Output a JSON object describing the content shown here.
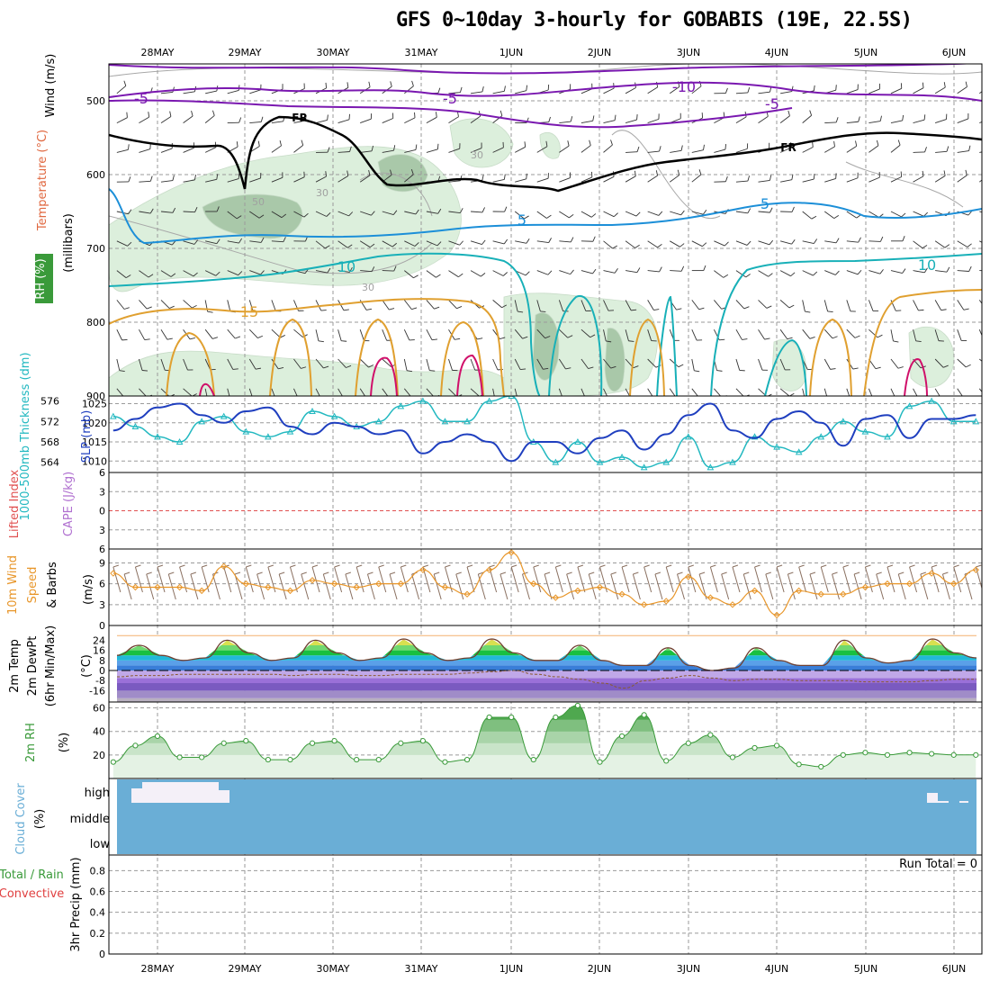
{
  "title": "GFS 0~10day 3-hourly for GOBABIS (19E, 22.5S)",
  "dates": [
    "28MAY",
    "29MAY",
    "30MAY",
    "31MAY",
    "1JUN",
    "2JUN",
    "3JUN",
    "4JUN",
    "5JUN",
    "6JUN"
  ],
  "colors": {
    "grid": "#9a9a9a",
    "frame": "#000000",
    "rh_fill": "#dcefdc",
    "rh_dark": "#a9c8a9",
    "slp": "#1f3fbf",
    "thickness": "#22b8c0",
    "wind10m": "#e8962a",
    "barbs": "#8a7060",
    "temp_purple": "#7a18b0",
    "temp_blue": "#1c8fd8",
    "temp_cyan": "#18b0b8",
    "temp_orange": "#e0a030",
    "temp_red": "#d0106a",
    "freezing": "#000000",
    "cloud": "#6aaed6",
    "cloud_high": "#f4f0f8",
    "rh2m": "#3a9a3a",
    "lifted_index": "#e05050"
  },
  "upper_air": {
    "ylabel_wind": "Wind (m/s)",
    "ylabel_temp": "Temperature (°C)",
    "ylabel_rh": "RH (%)",
    "ylabel_pressure": "(millibars)",
    "pressure_ticks": [
      "500",
      "600",
      "700",
      "800",
      "900"
    ],
    "contour_labels": [
      "-5",
      "-5",
      "-10",
      "-5",
      "FR",
      "FR",
      "5",
      "5",
      "10",
      "15",
      "10",
      "30",
      "30",
      "50",
      "30"
    ]
  },
  "panels": {
    "thickness": {
      "label_left": "1000-500mb Thickness (dm)",
      "label_right": "SLP (mb)",
      "thickness_ticks": [
        "576",
        "572",
        "568",
        "564"
      ],
      "slp_ticks": [
        "1025",
        "1020",
        "1015",
        "1010"
      ]
    },
    "cape": {
      "label_left": "Lifted Index",
      "label_right": "CAPE (J/kg)",
      "ticks": [
        "6",
        "3",
        "0",
        "3",
        "6"
      ]
    },
    "wind10m": {
      "label1": "10m Wind",
      "label2": "Speed",
      "label3": "& Barbs",
      "unit": "(m/s)",
      "ticks": [
        "9",
        "6",
        "3",
        "0"
      ]
    },
    "temp2m": {
      "label1": "2m Temp",
      "label2": "2m DewPt",
      "label3": "(6hr Min/Max)",
      "unit": "(°C)",
      "ticks": [
        "24",
        "16",
        "8",
        "0",
        "-8",
        "-16"
      ]
    },
    "rh2m": {
      "label": "2m RH",
      "unit": "(%)",
      "ticks": [
        "60",
        "40",
        "20"
      ]
    },
    "cloud": {
      "label": "Cloud Cover",
      "unit": "(%)",
      "levels": [
        "high",
        "middle",
        "low"
      ]
    },
    "precip": {
      "label1": "Total / Rain",
      "label2": "Convective",
      "label3": "3hr Precip (mm)",
      "run_total": "Run Total = 0",
      "ticks": [
        "0.8",
        "0.6",
        "0.4",
        "0.2",
        "0"
      ]
    }
  },
  "chart_data": [
    {
      "type": "line",
      "title": "Sea level pressure",
      "ylabel": "SLP (mb)",
      "x": [
        "27MAY 12Z",
        "27MAY 18Z",
        "28MAY 00Z",
        "28MAY 06Z",
        "28MAY 12Z",
        "28MAY 18Z",
        "29MAY 00Z",
        "29MAY 06Z",
        "29MAY 12Z",
        "29MAY 18Z",
        "30MAY 00Z",
        "30MAY 06Z",
        "30MAY 12Z",
        "30MAY 18Z",
        "31MAY 00Z",
        "31MAY 06Z",
        "31MAY 12Z",
        "31MAY 18Z",
        "1JUN 00Z",
        "1JUN 06Z",
        "1JUN 12Z",
        "1JUN 18Z",
        "2JUN 00Z",
        "2JUN 06Z",
        "2JUN 12Z",
        "2JUN 18Z",
        "3JUN 00Z",
        "3JUN 06Z",
        "3JUN 12Z",
        "3JUN 18Z",
        "4JUN 00Z",
        "4JUN 06Z",
        "4JUN 12Z",
        "4JUN 18Z",
        "5JUN 00Z",
        "5JUN 06Z",
        "5JUN 12Z",
        "5JUN 18Z",
        "6JUN 00Z",
        "6JUN 06Z"
      ],
      "series": [
        {
          "name": "SLP (mb)",
          "values": [
            1018,
            1021,
            1024,
            1025,
            1022,
            1020,
            1023,
            1024,
            1019,
            1017,
            1020,
            1019,
            1017,
            1018,
            1012,
            1015,
            1017,
            1015,
            1010,
            1015,
            1015,
            1012,
            1016,
            1018,
            1013,
            1017,
            1022,
            1025,
            1018,
            1016,
            1021,
            1023,
            1020,
            1014,
            1021,
            1022,
            1016,
            1021,
            1021,
            1022
          ]
        }
      ],
      "ylim": [
        1007,
        1027
      ]
    },
    {
      "type": "line",
      "title": "1000-500mb thickness",
      "ylabel": "1000-500mb Thickness (dm)",
      "x": [
        "27MAY 12Z",
        "27MAY 18Z",
        "28MAY 00Z",
        "28MAY 06Z",
        "28MAY 12Z",
        "28MAY 18Z",
        "29MAY 00Z",
        "29MAY 06Z",
        "29MAY 12Z",
        "29MAY 18Z",
        "30MAY 00Z",
        "30MAY 06Z",
        "30MAY 12Z",
        "30MAY 18Z",
        "31MAY 00Z",
        "31MAY 06Z",
        "31MAY 12Z",
        "31MAY 18Z",
        "1JUN 00Z",
        "1JUN 06Z",
        "1JUN 12Z",
        "1JUN 18Z",
        "2JUN 00Z",
        "2JUN 06Z",
        "2JUN 12Z",
        "2JUN 18Z",
        "3JUN 00Z",
        "3JUN 06Z",
        "3JUN 12Z",
        "3JUN 18Z",
        "4JUN 00Z",
        "4JUN 06Z",
        "4JUN 12Z",
        "4JUN 18Z",
        "5JUN 00Z",
        "5JUN 06Z",
        "5JUN 12Z",
        "5JUN 18Z",
        "6JUN 00Z",
        "6JUN 06Z"
      ],
      "series": [
        {
          "name": "1000-500mb Thickness (dm)",
          "values": [
            573,
            571,
            569,
            568,
            572,
            573,
            570,
            569,
            570,
            574,
            573,
            571,
            572,
            575,
            576,
            572,
            572,
            576,
            577,
            568,
            564,
            568,
            564,
            565,
            563,
            564,
            569,
            563,
            564,
            569,
            567,
            566,
            569,
            572,
            570,
            569,
            575,
            576,
            572,
            572
          ]
        }
      ],
      "ylim": [
        562,
        577
      ]
    },
    {
      "type": "line",
      "title": "10m wind speed",
      "ylabel": "(m/s)",
      "x": [
        "27MAY 12Z",
        "27MAY 18Z",
        "28MAY 00Z",
        "28MAY 06Z",
        "28MAY 12Z",
        "28MAY 18Z",
        "29MAY 00Z",
        "29MAY 06Z",
        "29MAY 12Z",
        "29MAY 18Z",
        "30MAY 00Z",
        "30MAY 06Z",
        "30MAY 12Z",
        "30MAY 18Z",
        "31MAY 00Z",
        "31MAY 06Z",
        "31MAY 12Z",
        "31MAY 18Z",
        "1JUN 00Z",
        "1JUN 06Z",
        "1JUN 12Z",
        "1JUN 18Z",
        "2JUN 00Z",
        "2JUN 06Z",
        "2JUN 12Z",
        "2JUN 18Z",
        "3JUN 00Z",
        "3JUN 06Z",
        "3JUN 12Z",
        "3JUN 18Z",
        "4JUN 00Z",
        "4JUN 06Z",
        "4JUN 12Z",
        "4JUN 18Z",
        "5JUN 00Z",
        "5JUN 06Z",
        "5JUN 12Z",
        "5JUN 18Z",
        "6JUN 00Z",
        "6JUN 06Z"
      ],
      "series": [
        {
          "name": "10m Wind Speed",
          "values": [
            7.5,
            5.5,
            5.5,
            5.5,
            5,
            8.5,
            6,
            5.5,
            5,
            6.5,
            6,
            5.5,
            6,
            6,
            8,
            5.5,
            4.5,
            8,
            10.5,
            6,
            4,
            5,
            5.5,
            4.5,
            3,
            3.5,
            7,
            4,
            3,
            5,
            1.5,
            5,
            4.5,
            4.5,
            5.5,
            6,
            6,
            7.5,
            6,
            8
          ]
        }
      ],
      "ylim": [
        0,
        11
      ]
    },
    {
      "type": "area",
      "title": "2m relative humidity",
      "ylabel": "(%)",
      "x": [
        "27MAY 12Z",
        "27MAY 18Z",
        "28MAY 00Z",
        "28MAY 06Z",
        "28MAY 12Z",
        "28MAY 18Z",
        "29MAY 00Z",
        "29MAY 06Z",
        "29MAY 12Z",
        "29MAY 18Z",
        "30MAY 00Z",
        "30MAY 06Z",
        "30MAY 12Z",
        "30MAY 18Z",
        "31MAY 00Z",
        "31MAY 06Z",
        "31MAY 12Z",
        "31MAY 18Z",
        "1JUN 00Z",
        "1JUN 06Z",
        "1JUN 12Z",
        "1JUN 18Z",
        "2JUN 00Z",
        "2JUN 06Z",
        "2JUN 12Z",
        "2JUN 18Z",
        "3JUN 00Z",
        "3JUN 06Z",
        "3JUN 12Z",
        "3JUN 18Z",
        "4JUN 00Z",
        "4JUN 06Z",
        "4JUN 12Z",
        "4JUN 18Z",
        "5JUN 00Z",
        "5JUN 06Z",
        "5JUN 12Z",
        "5JUN 18Z",
        "6JUN 00Z",
        "6JUN 06Z"
      ],
      "series": [
        {
          "name": "2m RH",
          "values": [
            14,
            28,
            36,
            18,
            18,
            30,
            32,
            16,
            16,
            30,
            32,
            16,
            16,
            30,
            32,
            14,
            16,
            52,
            52,
            16,
            52,
            62,
            14,
            36,
            54,
            15,
            30,
            37,
            18,
            26,
            28,
            12,
            10,
            20,
            22,
            20,
            22,
            21,
            20,
            20
          ]
        }
      ],
      "ylim": [
        0,
        65
      ]
    }
  ]
}
